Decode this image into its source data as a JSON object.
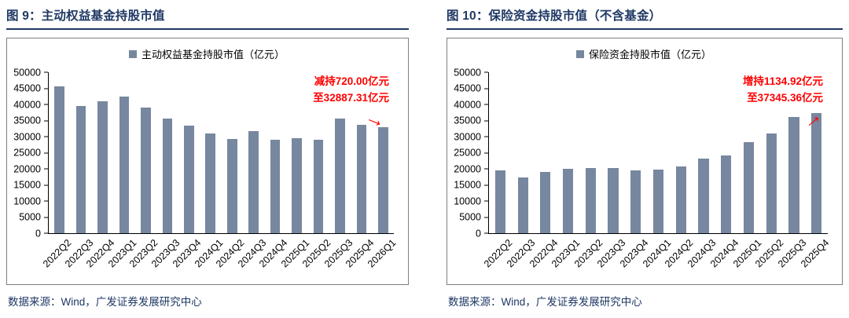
{
  "icons": {
    "annotation_arrow": "→",
    "legend_swatch": "square"
  },
  "colors": {
    "bar": "#77879F",
    "title_navy": "#1F3864",
    "annotation_red": "#FF0000",
    "axis": "#000000",
    "chart_border": "#7F7F7F"
  },
  "figures": [
    {
      "title": "图 9：主动权益基金持股市值",
      "source": "数据来源：Wind，广发证券发展研究中心"
    },
    {
      "title": "图 10：保险资金持股市值（不含基金）",
      "source": "数据来源：Wind，广发证券发展研究中心"
    }
  ],
  "chart_data": [
    {
      "type": "bar",
      "title": "主动权益基金持股市值",
      "legend": "主动权益基金持股市值（亿元）",
      "categories": [
        "2022Q2",
        "2022Q3",
        "2022Q4",
        "2023Q1",
        "2023Q2",
        "2023Q3",
        "2023Q4",
        "2024Q1",
        "2024Q2",
        "2024Q3",
        "2024Q4",
        "2025Q1",
        "2025Q2",
        "2025Q3",
        "2025Q4",
        "2026Q1"
      ],
      "values": [
        45500,
        39500,
        41000,
        42500,
        39000,
        35700,
        33300,
        31000,
        29300,
        31800,
        29000,
        29400,
        29100,
        35500,
        33607.31,
        32887.31
      ],
      "ylim": [
        0,
        50000
      ],
      "ytick_step": 5000,
      "grid": false,
      "legend_position": "top",
      "bar_color": "#77879F",
      "annotation": {
        "lines": [
          "减持720.00亿元",
          "至32887.31亿元"
        ],
        "color": "#FF0000",
        "arrow": "down-right"
      }
    },
    {
      "type": "bar",
      "title": "保险资金持股市值（不含基金）",
      "legend": "保险资金持股市值（亿元）",
      "categories": [
        "2022Q2",
        "2022Q3",
        "2022Q4",
        "2023Q1",
        "2023Q2",
        "2023Q3",
        "2023Q4",
        "2024Q1",
        "2024Q2",
        "2024Q3",
        "2024Q4",
        "2025Q1",
        "2025Q2",
        "2025Q3",
        "2025Q4"
      ],
      "values": [
        19400,
        17300,
        19000,
        20100,
        20300,
        20200,
        19500,
        19800,
        20800,
        23200,
        24200,
        28200,
        30900,
        36210.44,
        37345.36
      ],
      "ylim": [
        0,
        50000
      ],
      "ytick_step": 5000,
      "grid": false,
      "legend_position": "top",
      "bar_color": "#77879F",
      "annotation": {
        "lines": [
          "增持1134.92亿元",
          "至37345.36亿元"
        ],
        "color": "#FF0000",
        "arrow": "up-right"
      }
    }
  ]
}
